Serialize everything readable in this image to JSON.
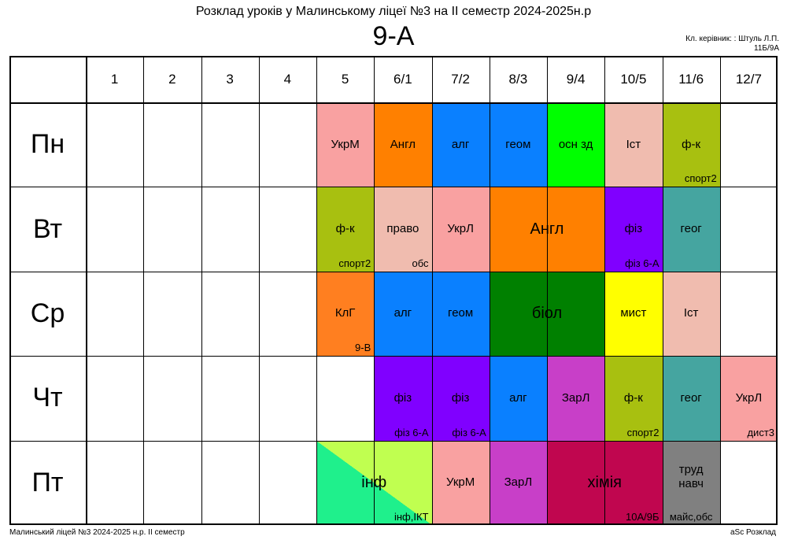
{
  "header": {
    "title": "Розклад уроків у Малинському ліцеї №3 на ІІ семестр 2024-2025н.р",
    "class_name": "9-А",
    "teacher_line1": "Кл. керівник: : Штуль Л.П.",
    "teacher_line2": "11Б/9А"
  },
  "footer": {
    "left": "Малинський ліцей №3  2024-2025 н.р. ІІ семестр",
    "right": "aSc Розклад"
  },
  "periods": [
    "1",
    "2",
    "3",
    "4",
    "5",
    "6/1",
    "7/2",
    "8/3",
    "9/4",
    "10/5",
    "11/6",
    "12/7"
  ],
  "days": [
    "Пн",
    "Вт",
    "Ср",
    "Чт",
    "Пт"
  ],
  "lessons": [
    {
      "day": 0,
      "start": 4,
      "span": 1,
      "subject": "УкрМ",
      "note": "",
      "color": "#f9a1a1"
    },
    {
      "day": 0,
      "start": 5,
      "span": 1,
      "subject": "Англ",
      "note": "",
      "color": "#ff8000"
    },
    {
      "day": 0,
      "start": 6,
      "span": 1,
      "subject": "алг",
      "note": "",
      "color": "#0a80ff"
    },
    {
      "day": 0,
      "start": 7,
      "span": 1,
      "subject": "геом",
      "note": "",
      "color": "#0a80ff"
    },
    {
      "day": 0,
      "start": 8,
      "span": 1,
      "subject": "осн зд",
      "note": "",
      "color": "#00ff00"
    },
    {
      "day": 0,
      "start": 9,
      "span": 1,
      "subject": "Іст",
      "note": "",
      "color": "#f0bcaf"
    },
    {
      "day": 0,
      "start": 10,
      "span": 1,
      "subject": "ф-к",
      "note": "спорт2",
      "color": "#a8c010"
    },
    {
      "day": 1,
      "start": 4,
      "span": 1,
      "subject": "ф-к",
      "note": "спорт2",
      "color": "#a8c010"
    },
    {
      "day": 1,
      "start": 5,
      "span": 1,
      "subject": "право",
      "note": "обс",
      "color": "#f0bcaf"
    },
    {
      "day": 1,
      "start": 6,
      "span": 1,
      "subject": "УкрЛ",
      "note": "",
      "color": "#f9a1a1"
    },
    {
      "day": 1,
      "start": 7,
      "span": 2,
      "subject": "Англ",
      "note": "",
      "color": "#ff8000",
      "size": "big"
    },
    {
      "day": 1,
      "start": 9,
      "span": 1,
      "subject": "фіз",
      "note": "фіз 6-А",
      "color": "#8000ff"
    },
    {
      "day": 1,
      "start": 10,
      "span": 1,
      "subject": "геог",
      "note": "",
      "color": "#45a5a0"
    },
    {
      "day": 2,
      "start": 4,
      "span": 1,
      "subject": "КлГ",
      "note": "9-В",
      "color": "#ff7f20"
    },
    {
      "day": 2,
      "start": 5,
      "span": 1,
      "subject": "алг",
      "note": "",
      "color": "#0a80ff"
    },
    {
      "day": 2,
      "start": 6,
      "span": 1,
      "subject": "геом",
      "note": "",
      "color": "#0a80ff"
    },
    {
      "day": 2,
      "start": 7,
      "span": 2,
      "subject": "біол",
      "note": "",
      "color": "#008000",
      "size": "big"
    },
    {
      "day": 2,
      "start": 9,
      "span": 1,
      "subject": "мист",
      "note": "",
      "color": "#ffff00"
    },
    {
      "day": 2,
      "start": 10,
      "span": 1,
      "subject": "Іст",
      "note": "",
      "color": "#f0bcaf"
    },
    {
      "day": 3,
      "start": 5,
      "span": 1,
      "subject": "фіз",
      "note": "фіз 6-А",
      "color": "#8000ff"
    },
    {
      "day": 3,
      "start": 6,
      "span": 1,
      "subject": "фіз",
      "note": "фіз 6-А",
      "color": "#8000ff"
    },
    {
      "day": 3,
      "start": 7,
      "span": 1,
      "subject": "алг",
      "note": "",
      "color": "#0a80ff"
    },
    {
      "day": 3,
      "start": 8,
      "span": 1,
      "subject": "ЗарЛ",
      "note": "",
      "color": "#c83fc8"
    },
    {
      "day": 3,
      "start": 9,
      "span": 1,
      "subject": "ф-к",
      "note": "спорт2",
      "color": "#a8c010"
    },
    {
      "day": 3,
      "start": 10,
      "span": 1,
      "subject": "геог",
      "note": "",
      "color": "#45a5a0"
    },
    {
      "day": 3,
      "start": 11,
      "span": 1,
      "subject": "УкрЛ",
      "note": "дист3",
      "color": "#f9a1a1"
    },
    {
      "day": 4,
      "start": 4,
      "span": 2,
      "subject": "інф",
      "note": "інф,ІКТ",
      "color": "#1ff08c",
      "color2": "#c0ff50",
      "size": "big"
    },
    {
      "day": 4,
      "start": 6,
      "span": 1,
      "subject": "УкрМ",
      "note": "",
      "color": "#f9a1a1"
    },
    {
      "day": 4,
      "start": 7,
      "span": 1,
      "subject": "ЗарЛ",
      "note": "",
      "color": "#c83fc8"
    },
    {
      "day": 4,
      "start": 8,
      "span": 2,
      "subject": "хімія",
      "note": "10А/9Б",
      "color": "#c0064f",
      "size": "big"
    },
    {
      "day": 4,
      "start": 10,
      "span": 1,
      "subject": "труд\nнавч",
      "note": "майс,обс",
      "color": "#808080",
      "centerNote": true
    }
  ]
}
